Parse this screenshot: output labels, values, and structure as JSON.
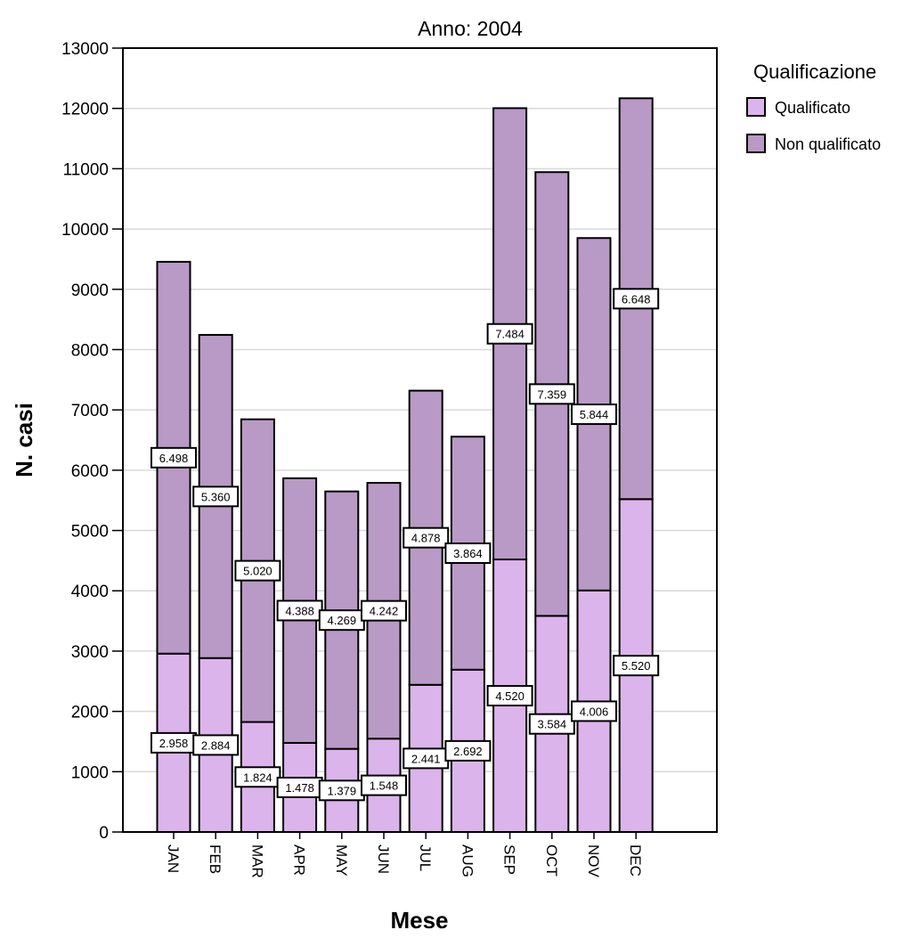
{
  "chart_data": {
    "type": "bar",
    "stacked": true,
    "title": "Anno: 2004",
    "xlabel": "Mese",
    "ylabel": "N. casi",
    "ylim": [
      0,
      13000
    ],
    "yticks": [
      "0",
      "1000",
      "2000",
      "3000",
      "4000",
      "5000",
      "6000",
      "7000",
      "8000",
      "9000",
      "10000",
      "11000",
      "12000",
      "13000"
    ],
    "grid": true,
    "legend_position": "right",
    "legend_title": "Qualificazione",
    "categories": [
      "JAN",
      "FEB",
      "MAR",
      "APR",
      "MAY",
      "JUN",
      "JUL",
      "AUG",
      "SEP",
      "OCT",
      "NOV",
      "DEC"
    ],
    "series": [
      {
        "name": "Qualificato",
        "color": "#dcb4ec",
        "values": [
          2958,
          2884,
          1824,
          1478,
          1379,
          1548,
          2441,
          2692,
          4520,
          3584,
          4006,
          5520
        ],
        "labels": [
          "2.958",
          "2.884",
          "1.824",
          "1.478",
          "1.379",
          "1.548",
          "2.441",
          "2.692",
          "4.520",
          "3.584",
          "4.006",
          "5.520"
        ]
      },
      {
        "name": "Non qualificato",
        "color": "#b99ac6",
        "values": [
          6498,
          5360,
          5020,
          4388,
          4269,
          4242,
          4878,
          3864,
          7484,
          7359,
          5844,
          6648
        ],
        "labels": [
          "6.498",
          "5.360",
          "5.020",
          "4.388",
          "4.269",
          "4.242",
          "4.878",
          "3.864",
          "7.484",
          "7.359",
          "5.844",
          "6.648"
        ]
      }
    ]
  }
}
